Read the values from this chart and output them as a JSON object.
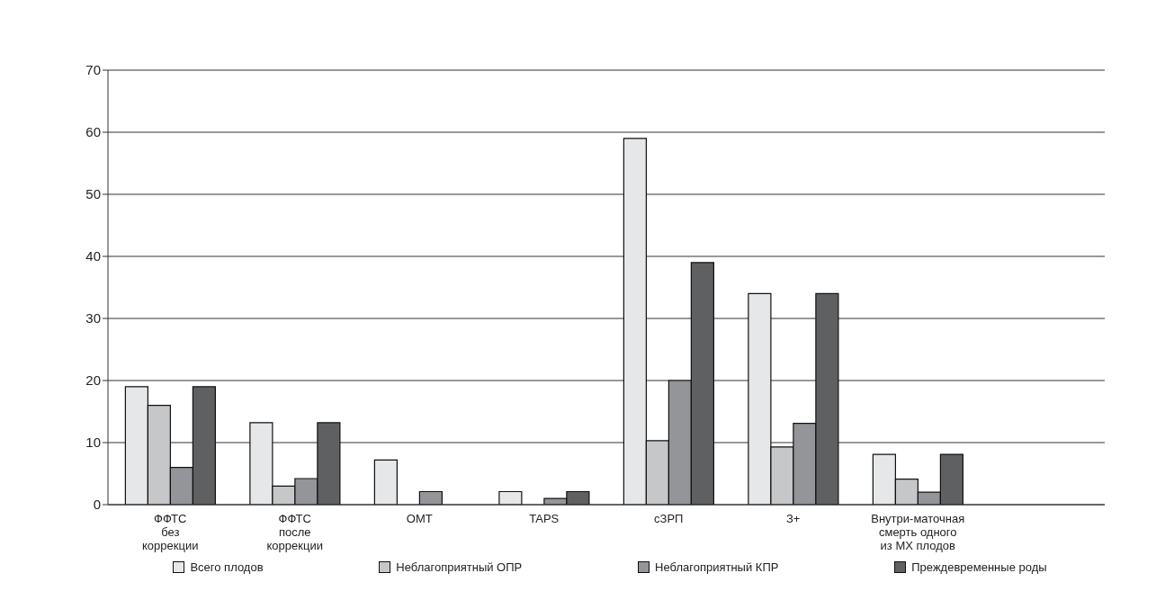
{
  "chart_data": {
    "type": "bar",
    "categories": [
      "ФФТС\nбез\nкоррекции",
      "ФФТС\nпосле\nкоррекции",
      "ОМТ",
      "TAPS",
      "сЗРП",
      "З+",
      "Внутри-маточная\nсмерть одного\nиз МХ плодов",
      null
    ],
    "series": [
      {
        "name": "Всего плодов",
        "color": "#e6e7e8",
        "values": [
          19,
          13.2,
          7.2,
          2.1,
          59,
          34,
          8.1,
          null
        ]
      },
      {
        "name": "Неблагоприятный ОПР",
        "color": "#c6c7c9",
        "values": [
          16,
          3,
          null,
          null,
          10.3,
          9.3,
          4.1,
          null
        ]
      },
      {
        "name": "Неблагоприятный КПР",
        "color": "#939598",
        "values": [
          6,
          4.2,
          2.1,
          1,
          20,
          13.1,
          2,
          null
        ]
      },
      {
        "name": "Преждевременные роды",
        "color": "#5f6062",
        "values": [
          19,
          13.2,
          null,
          2.1,
          39,
          34,
          8.1,
          null
        ]
      }
    ],
    "ylim": [
      0,
      70
    ],
    "yticks": [
      0,
      10,
      20,
      30,
      40,
      50,
      60,
      70
    ],
    "grid": "y",
    "legend": "bottom"
  }
}
